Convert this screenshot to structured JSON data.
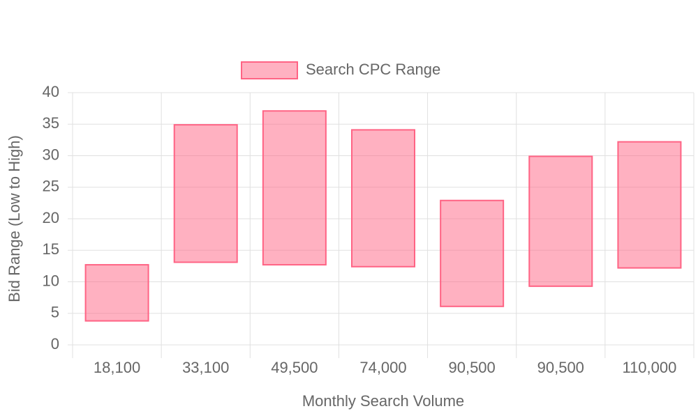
{
  "chart_data": {
    "type": "range-bar",
    "x_label": "Monthly Search Volume",
    "y_label": "Bid Range (Low to High)",
    "categories": [
      "18,100",
      "33,100",
      "49,500",
      "74,000",
      "90,500",
      "90,500",
      "110,000"
    ],
    "series": [
      {
        "name": "Search CPC Range",
        "color": "#ff6384",
        "low": [
          3.8,
          13.1,
          12.7,
          12.4,
          6.1,
          9.3,
          12.2
        ],
        "high": [
          12.7,
          34.9,
          37.1,
          34.1,
          22.9,
          29.9,
          32.2
        ]
      }
    ],
    "ylim": [
      0,
      40
    ],
    "yticks": [
      0,
      5,
      10,
      15,
      20,
      25,
      30,
      35,
      40
    ],
    "grid": true,
    "legend": "top"
  }
}
